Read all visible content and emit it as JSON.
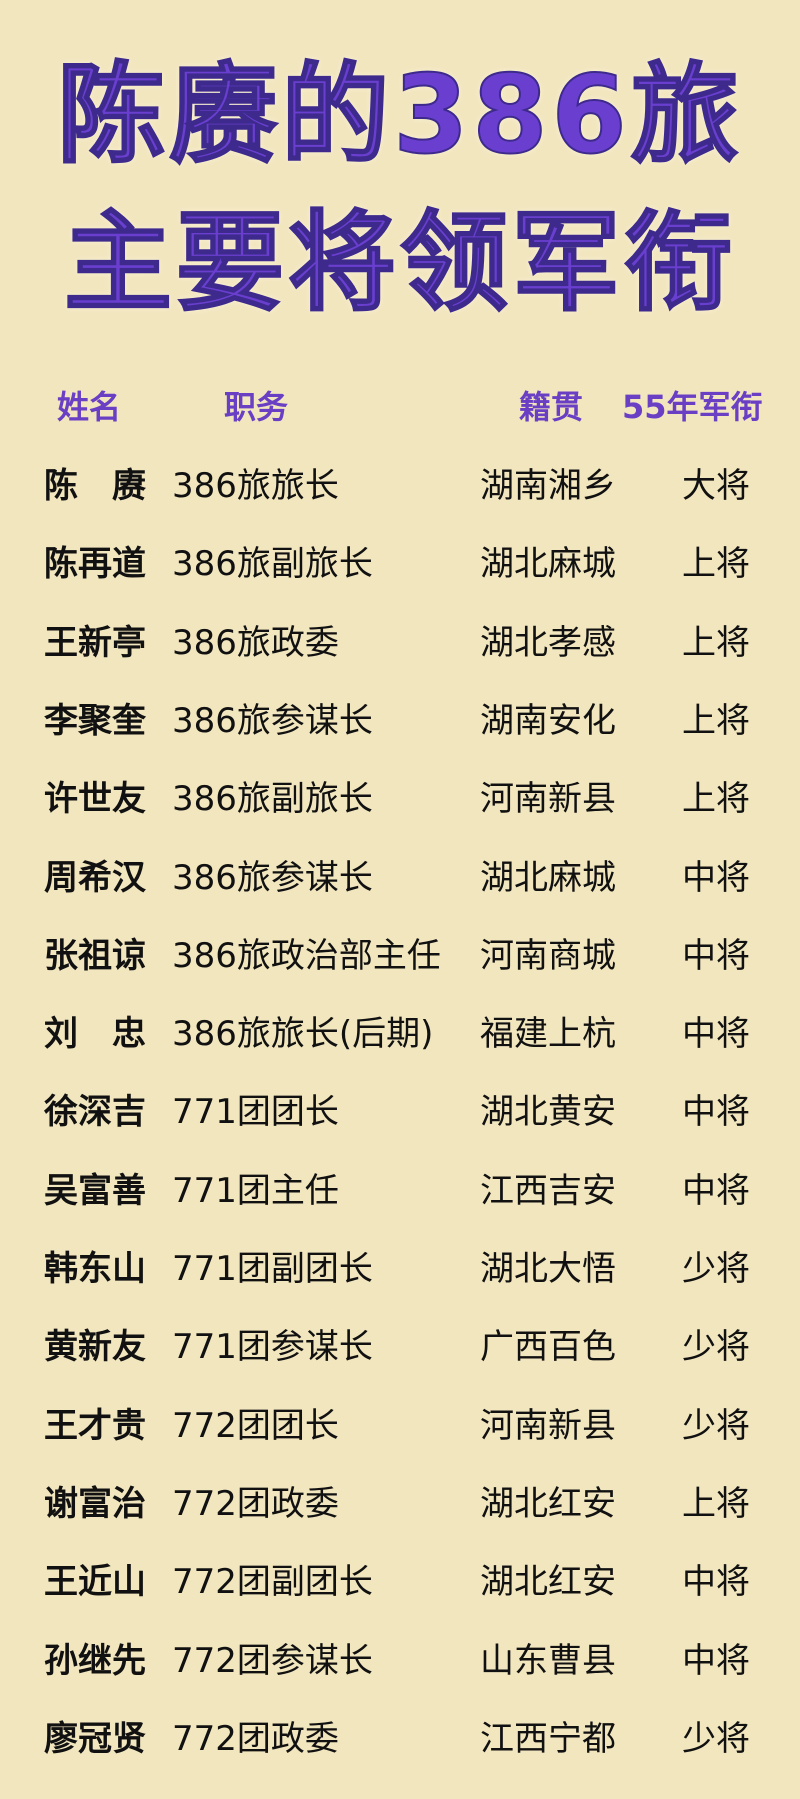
{
  "title": {
    "line1": "陈赓的386旅",
    "line2": "主要将领军衔"
  },
  "colors": {
    "background": "#f2e6bf",
    "title": "#6a3fd0",
    "header": "#6a3fc4",
    "text": "#111111"
  },
  "headers": {
    "name": "姓名",
    "duty": "职务",
    "native": "籍贯",
    "rank": "55年军衔"
  },
  "rows": [
    {
      "name": "陈　赓",
      "duty": "386旅旅长",
      "native": "湖南湘乡",
      "rank": "大将"
    },
    {
      "name": "陈再道",
      "duty": "386旅副旅长",
      "native": "湖北麻城",
      "rank": "上将"
    },
    {
      "name": "王新亭",
      "duty": "386旅政委",
      "native": "湖北孝感",
      "rank": "上将"
    },
    {
      "name": "李聚奎",
      "duty": "386旅参谋长",
      "native": "湖南安化",
      "rank": "上将"
    },
    {
      "name": "许世友",
      "duty": "386旅副旅长",
      "native": "河南新县",
      "rank": "上将"
    },
    {
      "name": "周希汉",
      "duty": "386旅参谋长",
      "native": "湖北麻城",
      "rank": "中将"
    },
    {
      "name": "张祖谅",
      "duty": "386旅政治部主任",
      "native": "河南商城",
      "rank": "中将"
    },
    {
      "name": "刘　忠",
      "duty": "386旅旅长(后期)",
      "native": "福建上杭",
      "rank": "中将"
    },
    {
      "name": "徐深吉",
      "duty": "771团团长",
      "native": "湖北黄安",
      "rank": "中将"
    },
    {
      "name": "吴富善",
      "duty": "771团主任",
      "native": "江西吉安",
      "rank": "中将"
    },
    {
      "name": "韩东山",
      "duty": "771团副团长",
      "native": "湖北大悟",
      "rank": "少将"
    },
    {
      "name": "黄新友",
      "duty": "771团参谋长",
      "native": "广西百色",
      "rank": "少将"
    },
    {
      "name": "王才贵",
      "duty": "772团团长",
      "native": "河南新县",
      "rank": "少将"
    },
    {
      "name": "谢富治",
      "duty": "772团政委",
      "native": "湖北红安",
      "rank": "上将"
    },
    {
      "name": "王近山",
      "duty": "772团副团长",
      "native": "湖北红安",
      "rank": "中将"
    },
    {
      "name": "孙继先",
      "duty": "772团参谋长",
      "native": "山东曹县",
      "rank": "中将"
    },
    {
      "name": "廖冠贤",
      "duty": "772团政委",
      "native": "江西宁都",
      "rank": "少将"
    }
  ]
}
